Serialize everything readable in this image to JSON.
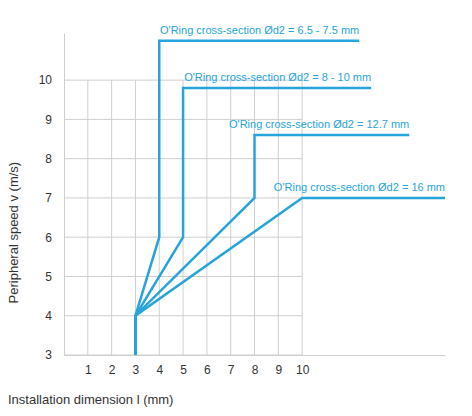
{
  "chart_data": {
    "type": "line",
    "x_label": "Installation dimension  l  (mm)",
    "y_label": "Peripheral speed  v  (m/s)",
    "xlim": [
      0,
      16
    ],
    "xticks": [
      1,
      2,
      3,
      4,
      5,
      6,
      7,
      8,
      9,
      10
    ],
    "ylim": [
      3,
      11.2
    ],
    "yticks": [
      3,
      4,
      5,
      6,
      7,
      8,
      9,
      10
    ],
    "grid": true,
    "series": [
      {
        "name": "O'Ring cross-section Ød2 = 6.5 - 7.5 mm",
        "color": "#27a4dc",
        "x": [
          3,
          3,
          4,
          4,
          12.4
        ],
        "values": [
          3,
          4,
          6,
          11,
          11
        ]
      },
      {
        "name": "O'Ring cross-section Ød2 =  8 - 10 mm",
        "color": "#27a4dc",
        "x": [
          3,
          3,
          5,
          5,
          12.9
        ],
        "values": [
          3,
          4,
          6,
          9.8,
          9.8
        ]
      },
      {
        "name": "O'Ring cross-section Ød2 = 12.7 mm",
        "color": "#27a4dc",
        "x": [
          3,
          3,
          8,
          8,
          14.5
        ],
        "values": [
          3,
          4,
          7,
          8.6,
          8.6
        ]
      },
      {
        "name": "O'Ring cross-section Ød2 = 16 mm",
        "color": "#27a4dc",
        "x": [
          3,
          3,
          10,
          10,
          16
        ],
        "values": [
          3,
          4,
          7,
          7,
          7
        ]
      }
    ]
  }
}
